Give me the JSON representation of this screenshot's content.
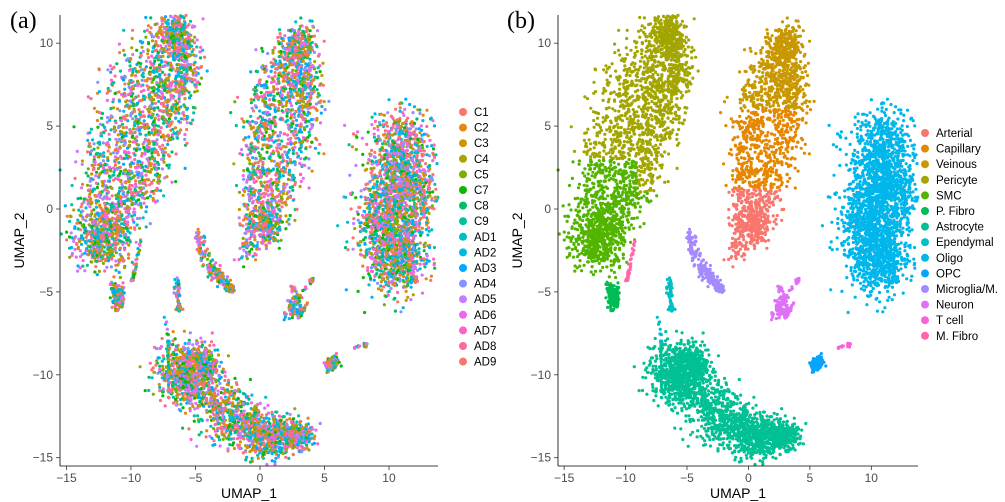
{
  "chart_data": [
    {
      "panel_label": "(a)",
      "type": "scatter",
      "xlabel": "UMAP_1",
      "ylabel": "UMAP_2",
      "xlim": [
        -15.5,
        13.8
      ],
      "ylim": [
        -15.5,
        11.7
      ],
      "xticks": [
        -15,
        -10,
        -5,
        0,
        5,
        10
      ],
      "yticks": [
        -15,
        -10,
        -5,
        0,
        5,
        10
      ],
      "grid": false,
      "legend_position": "right",
      "mixing": "intermixed",
      "series": [
        {
          "name": "C1",
          "color": "#F8766D"
        },
        {
          "name": "C2",
          "color": "#E68613"
        },
        {
          "name": "C3",
          "color": "#CD9600"
        },
        {
          "name": "C4",
          "color": "#ABA300"
        },
        {
          "name": "C5",
          "color": "#7CAE00"
        },
        {
          "name": "C7",
          "color": "#0CB702"
        },
        {
          "name": "C8",
          "color": "#00BE67"
        },
        {
          "name": "C9",
          "color": "#00C19A"
        },
        {
          "name": "AD1",
          "color": "#00BFC4"
        },
        {
          "name": "AD2",
          "color": "#00B8E7"
        },
        {
          "name": "AD3",
          "color": "#00A9FF"
        },
        {
          "name": "AD4",
          "color": "#8494FF"
        },
        {
          "name": "AD5",
          "color": "#C77CFF"
        },
        {
          "name": "AD6",
          "color": "#ED68ED"
        },
        {
          "name": "AD7",
          "color": "#FF61CC"
        },
        {
          "name": "AD8",
          "color": "#FF68A1"
        },
        {
          "name": "AD9",
          "color": "#F8766D"
        }
      ]
    },
    {
      "panel_label": "(b)",
      "type": "scatter",
      "xlabel": "UMAP_1",
      "ylabel": "UMAP_2",
      "xlim": [
        -15.5,
        13.8
      ],
      "ylim": [
        -15.5,
        11.7
      ],
      "xticks": [
        -15,
        -10,
        -5,
        0,
        5,
        10
      ],
      "yticks": [
        -15,
        -10,
        -5,
        0,
        5,
        10
      ],
      "grid": false,
      "legend_position": "right",
      "mixing": "by-cluster",
      "series": [
        {
          "name": "Arterial",
          "color": "#F8766D"
        },
        {
          "name": "Capillary",
          "color": "#E58700"
        },
        {
          "name": "Veinous",
          "color": "#C99800"
        },
        {
          "name": "Pericyte",
          "color": "#A3A500"
        },
        {
          "name": "SMC",
          "color": "#53B400"
        },
        {
          "name": "P. Fibro",
          "color": "#00BC56"
        },
        {
          "name": "Astrocyte",
          "color": "#00C094"
        },
        {
          "name": "Ependymal",
          "color": "#00BFC4"
        },
        {
          "name": "Oligo",
          "color": "#00B6EB"
        },
        {
          "name": "OPC",
          "color": "#06A4FF"
        },
        {
          "name": "Microglia/M.",
          "color": "#A58AFF"
        },
        {
          "name": "Neuron",
          "color": "#DF70F8"
        },
        {
          "name": "T cell",
          "color": "#FB61D7"
        },
        {
          "name": "M. Fibro",
          "color": "#FF66A8"
        }
      ]
    }
  ]
}
